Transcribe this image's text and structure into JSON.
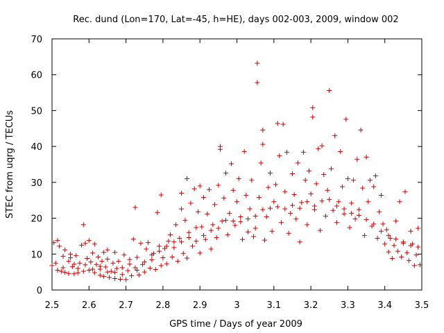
{
  "chart_data": {
    "type": "scatter",
    "title": "Rec. dund (Lon=170, Lat=-45, h=HE), days 002-003, 2009, window 002",
    "xlabel": "GPS time / Days of year 2009",
    "ylabel": "STEC from uqrg / TECUs",
    "xlim": [
      2.5,
      3.5
    ],
    "ylim": [
      0,
      70
    ],
    "xticks": [
      "2.5",
      "2.6",
      "2.7",
      "2.8",
      "2.9",
      "3",
      "3.1",
      "3.2",
      "3.3",
      "3.4",
      "3.5"
    ],
    "yticks": [
      "0",
      "10",
      "20",
      "30",
      "40",
      "50",
      "60",
      "70"
    ],
    "grid": false,
    "marker": "+",
    "color": "#cc0000",
    "series": [
      {
        "name": "STEC",
        "points": [
          [
            2.5,
            6.8
          ],
          [
            2.505,
            13.2
          ],
          [
            2.515,
            5.5
          ],
          [
            2.515,
            13.8
          ],
          [
            2.52,
            12.2
          ],
          [
            2.525,
            5.2
          ],
          [
            2.53,
            9.4
          ],
          [
            2.535,
            4.9
          ],
          [
            2.535,
            11.2
          ],
          [
            2.545,
            8.0
          ],
          [
            2.545,
            4.6
          ],
          [
            2.55,
            10.0
          ],
          [
            2.555,
            6.5
          ],
          [
            2.56,
            4.5
          ],
          [
            2.56,
            7.2
          ],
          [
            2.565,
            9.6
          ],
          [
            2.57,
            4.8
          ],
          [
            2.575,
            7.5
          ],
          [
            2.58,
            12.5
          ],
          [
            2.585,
            5.2
          ],
          [
            2.585,
            18.2
          ],
          [
            2.59,
            13.0
          ],
          [
            2.595,
            8.8
          ],
          [
            2.6,
            5.5
          ],
          [
            2.6,
            13.8
          ],
          [
            2.605,
            7.8
          ],
          [
            2.61,
            10.3
          ],
          [
            2.615,
            12.8
          ],
          [
            2.615,
            4.8
          ],
          [
            2.62,
            7.1
          ],
          [
            2.625,
            9.2
          ],
          [
            2.63,
            5.8
          ],
          [
            2.63,
            4.1
          ],
          [
            2.635,
            8.0
          ],
          [
            2.64,
            3.8
          ],
          [
            2.64,
            10.5
          ],
          [
            2.645,
            6.4
          ],
          [
            2.65,
            8.6
          ],
          [
            2.65,
            11.2
          ],
          [
            2.655,
            3.5
          ],
          [
            2.66,
            5.2
          ],
          [
            2.665,
            7.5
          ],
          [
            2.67,
            10.5
          ],
          [
            2.67,
            3.2
          ],
          [
            2.675,
            6.0
          ],
          [
            2.68,
            8.0
          ],
          [
            2.685,
            3.0
          ],
          [
            2.69,
            4.3
          ],
          [
            2.695,
            9.8
          ],
          [
            2.7,
            2.9
          ],
          [
            2.705,
            5.4
          ],
          [
            2.71,
            7.2
          ],
          [
            2.715,
            4.0
          ],
          [
            2.72,
            14.2
          ],
          [
            2.725,
            23.0
          ],
          [
            2.725,
            6.2
          ],
          [
            2.73,
            9.1
          ],
          [
            2.735,
            4.2
          ],
          [
            2.74,
            13.0
          ],
          [
            2.745,
            7.1
          ],
          [
            2.75,
            5.0
          ],
          [
            2.755,
            11.4
          ],
          [
            2.76,
            13.2
          ],
          [
            2.765,
            6.1
          ],
          [
            2.77,
            8.4
          ],
          [
            2.775,
            10.2
          ],
          [
            2.78,
            5.7
          ],
          [
            2.785,
            21.6
          ],
          [
            2.79,
            12.2
          ],
          [
            2.795,
            26.5
          ],
          [
            2.795,
            6.8
          ],
          [
            2.8,
            9.0
          ],
          [
            2.805,
            11.6
          ],
          [
            2.81,
            7.3
          ],
          [
            2.815,
            13.6
          ],
          [
            2.82,
            15.4
          ],
          [
            2.825,
            9.2
          ],
          [
            2.83,
            11.8
          ],
          [
            2.835,
            18.2
          ],
          [
            2.84,
            8.0
          ],
          [
            2.845,
            14.4
          ],
          [
            2.85,
            22.6
          ],
          [
            2.85,
            27.0
          ],
          [
            2.855,
            10.2
          ],
          [
            2.86,
            19.4
          ],
          [
            2.865,
            31.0
          ],
          [
            2.865,
            8.9
          ],
          [
            2.87,
            16.0
          ],
          [
            2.875,
            24.2
          ],
          [
            2.88,
            12.2
          ],
          [
            2.885,
            28.2
          ],
          [
            2.89,
            17.4
          ],
          [
            2.895,
            21.8
          ],
          [
            2.9,
            10.3
          ],
          [
            2.9,
            29.0
          ],
          [
            2.905,
            17.6
          ],
          [
            2.91,
            25.8
          ],
          [
            2.915,
            14.1
          ],
          [
            2.92,
            21.2
          ],
          [
            2.925,
            28.0
          ],
          [
            2.93,
            11.4
          ],
          [
            2.935,
            18.2
          ],
          [
            2.94,
            23.8
          ],
          [
            2.945,
            14.6
          ],
          [
            2.95,
            29.2
          ],
          [
            2.955,
            39.2
          ],
          [
            2.955,
            40.0
          ],
          [
            2.96,
            19.2
          ],
          [
            2.965,
            25.6
          ],
          [
            2.97,
            32.6
          ],
          [
            2.975,
            15.4
          ],
          [
            2.98,
            21.4
          ],
          [
            2.985,
            35.2
          ],
          [
            2.99,
            27.8
          ],
          [
            2.995,
            18.0
          ],
          [
            3.0,
            24.6
          ],
          [
            3.005,
            31.0
          ],
          [
            3.01,
            19.0
          ],
          [
            3.015,
            14.1
          ],
          [
            3.02,
            38.6
          ],
          [
            3.025,
            26.4
          ],
          [
            3.03,
            16.2
          ],
          [
            3.035,
            22.6
          ],
          [
            3.04,
            30.6
          ],
          [
            3.045,
            14.9
          ],
          [
            3.05,
            17.2
          ],
          [
            3.055,
            63.2
          ],
          [
            3.055,
            57.8
          ],
          [
            3.06,
            25.8
          ],
          [
            3.065,
            35.4
          ],
          [
            3.07,
            44.6
          ],
          [
            3.07,
            40.6
          ],
          [
            3.075,
            13.9
          ],
          [
            3.08,
            20.4
          ],
          [
            3.085,
            28.6
          ],
          [
            3.09,
            32.6
          ],
          [
            3.095,
            16.4
          ],
          [
            3.1,
            24.6
          ],
          [
            3.105,
            29.4
          ],
          [
            3.11,
            46.4
          ],
          [
            3.115,
            37.4
          ],
          [
            3.12,
            18.8
          ],
          [
            3.125,
            46.2
          ],
          [
            3.13,
            27.4
          ],
          [
            3.135,
            38.4
          ],
          [
            3.14,
            15.8
          ],
          [
            3.145,
            21.4
          ],
          [
            3.15,
            32.4
          ],
          [
            3.155,
            26.6
          ],
          [
            3.16,
            19.8
          ],
          [
            3.165,
            35.4
          ],
          [
            3.17,
            13.4
          ],
          [
            3.175,
            24.4
          ],
          [
            3.18,
            38.4
          ],
          [
            3.185,
            30.6
          ],
          [
            3.19,
            18.2
          ],
          [
            3.195,
            33.2
          ],
          [
            3.2,
            26.8
          ],
          [
            3.205,
            50.8
          ],
          [
            3.205,
            48.2
          ],
          [
            3.21,
            22.4
          ],
          [
            3.215,
            29.6
          ],
          [
            3.22,
            39.4
          ],
          [
            3.225,
            16.6
          ],
          [
            3.23,
            40.2
          ],
          [
            3.235,
            32.2
          ],
          [
            3.24,
            20.6
          ],
          [
            3.245,
            27.8
          ],
          [
            3.25,
            55.6
          ],
          [
            3.255,
            33.8
          ],
          [
            3.26,
            22.2
          ],
          [
            3.265,
            43.0
          ],
          [
            3.27,
            18.8
          ],
          [
            3.275,
            24.6
          ],
          [
            3.28,
            38.6
          ],
          [
            3.285,
            28.8
          ],
          [
            3.29,
            21.2
          ],
          [
            3.295,
            47.6
          ],
          [
            3.3,
            31.0
          ],
          [
            3.305,
            17.4
          ],
          [
            3.31,
            24.2
          ],
          [
            3.315,
            30.6
          ],
          [
            3.32,
            19.8
          ],
          [
            3.325,
            36.4
          ],
          [
            3.33,
            22.4
          ],
          [
            3.335,
            44.6
          ],
          [
            3.34,
            28.4
          ],
          [
            3.345,
            15.2
          ],
          [
            3.35,
            37.0
          ],
          [
            3.355,
            24.6
          ],
          [
            3.36,
            30.6
          ],
          [
            3.365,
            17.8
          ],
          [
            3.37,
            28.8
          ],
          [
            3.375,
            31.8
          ],
          [
            3.38,
            14.4
          ],
          [
            3.385,
            21.8
          ],
          [
            3.39,
            26.4
          ],
          [
            3.395,
            18.4
          ],
          [
            3.4,
            12.8
          ],
          [
            3.405,
            16.8
          ],
          [
            3.41,
            10.6
          ],
          [
            3.415,
            14.4
          ],
          [
            3.42,
            8.8
          ],
          [
            3.425,
            12.4
          ],
          [
            3.43,
            19.2
          ],
          [
            3.435,
            10.8
          ],
          [
            3.44,
            24.6
          ],
          [
            3.445,
            9.2
          ],
          [
            3.45,
            13.4
          ],
          [
            3.455,
            27.4
          ],
          [
            3.46,
            10.4
          ],
          [
            3.465,
            8.2
          ],
          [
            3.47,
            16.4
          ],
          [
            3.475,
            12.8
          ],
          [
            3.48,
            6.8
          ],
          [
            3.485,
            9.8
          ],
          [
            3.49,
            17.2
          ],
          [
            3.495,
            7.0
          ],
          [
            2.51,
            7.5
          ],
          [
            2.53,
            6.2
          ],
          [
            2.55,
            9.0
          ],
          [
            2.57,
            6.0
          ],
          [
            2.59,
            7.0
          ],
          [
            2.61,
            5.8
          ],
          [
            2.63,
            6.6
          ],
          [
            2.65,
            5.0
          ],
          [
            2.67,
            4.9
          ],
          [
            2.69,
            6.2
          ],
          [
            2.71,
            8.5
          ],
          [
            2.73,
            5.5
          ],
          [
            2.75,
            7.8
          ],
          [
            2.77,
            9.8
          ],
          [
            2.79,
            10.8
          ],
          [
            2.81,
            12.2
          ],
          [
            2.83,
            13.4
          ],
          [
            2.85,
            13.4
          ],
          [
            2.87,
            14.6
          ],
          [
            2.89,
            13.6
          ],
          [
            2.91,
            15.2
          ],
          [
            2.93,
            16.6
          ],
          [
            2.95,
            17.2
          ],
          [
            2.97,
            19.4
          ],
          [
            2.99,
            19.2
          ],
          [
            3.01,
            20.4
          ],
          [
            3.03,
            19.8
          ],
          [
            3.05,
            20.6
          ],
          [
            3.07,
            22.4
          ],
          [
            3.09,
            22.8
          ],
          [
            3.11,
            23.2
          ],
          [
            3.13,
            22.6
          ],
          [
            3.15,
            23.6
          ],
          [
            3.17,
            22.8
          ],
          [
            3.19,
            24.6
          ],
          [
            3.21,
            23.4
          ],
          [
            3.23,
            24.8
          ],
          [
            3.25,
            25.2
          ],
          [
            3.27,
            23.4
          ],
          [
            3.29,
            22.6
          ],
          [
            3.31,
            21.4
          ],
          [
            3.33,
            20.8
          ],
          [
            3.35,
            19.6
          ],
          [
            3.37,
            18.4
          ],
          [
            3.39,
            16.4
          ],
          [
            3.41,
            15.2
          ],
          [
            3.43,
            14.2
          ],
          [
            3.45,
            13.0
          ],
          [
            3.47,
            12.4
          ],
          [
            3.49,
            12.0
          ]
        ]
      }
    ]
  }
}
